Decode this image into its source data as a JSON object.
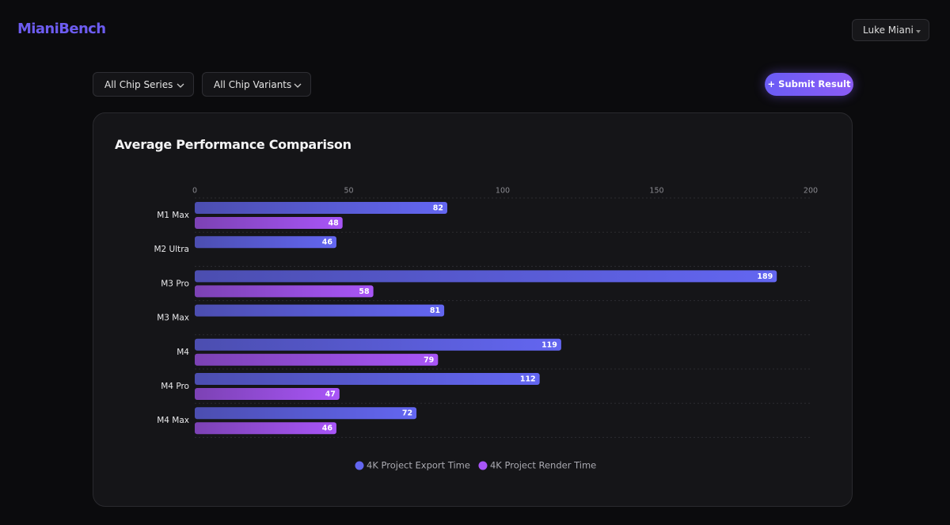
{
  "header": {
    "logo": "MianiBench",
    "user": "Luke Miani"
  },
  "filters": [
    "All Chip Series",
    "All Chip Variants"
  ],
  "actions": {
    "submit": "+ Submit Result"
  },
  "chart_data": {
    "type": "bar",
    "orientation": "horizontal",
    "title": "Average Performance Comparison",
    "categories": [
      "M1 Max",
      "M2 Ultra",
      "M3 Pro",
      "M3 Max",
      "M4",
      "M4 Pro",
      "M4 Max"
    ],
    "series": [
      {
        "name": "4K Project Export Time",
        "color": "#6366f1",
        "values": [
          82,
          46,
          189,
          81,
          119,
          112,
          72
        ]
      },
      {
        "name": "4K Project Render Time",
        "color": "#a855f7",
        "values": [
          48,
          null,
          58,
          null,
          79,
          47,
          46
        ]
      }
    ],
    "xlim": [
      0,
      200
    ],
    "xticks": [
      0,
      50,
      100,
      150,
      200
    ],
    "grid": true,
    "legend": "bottom"
  }
}
